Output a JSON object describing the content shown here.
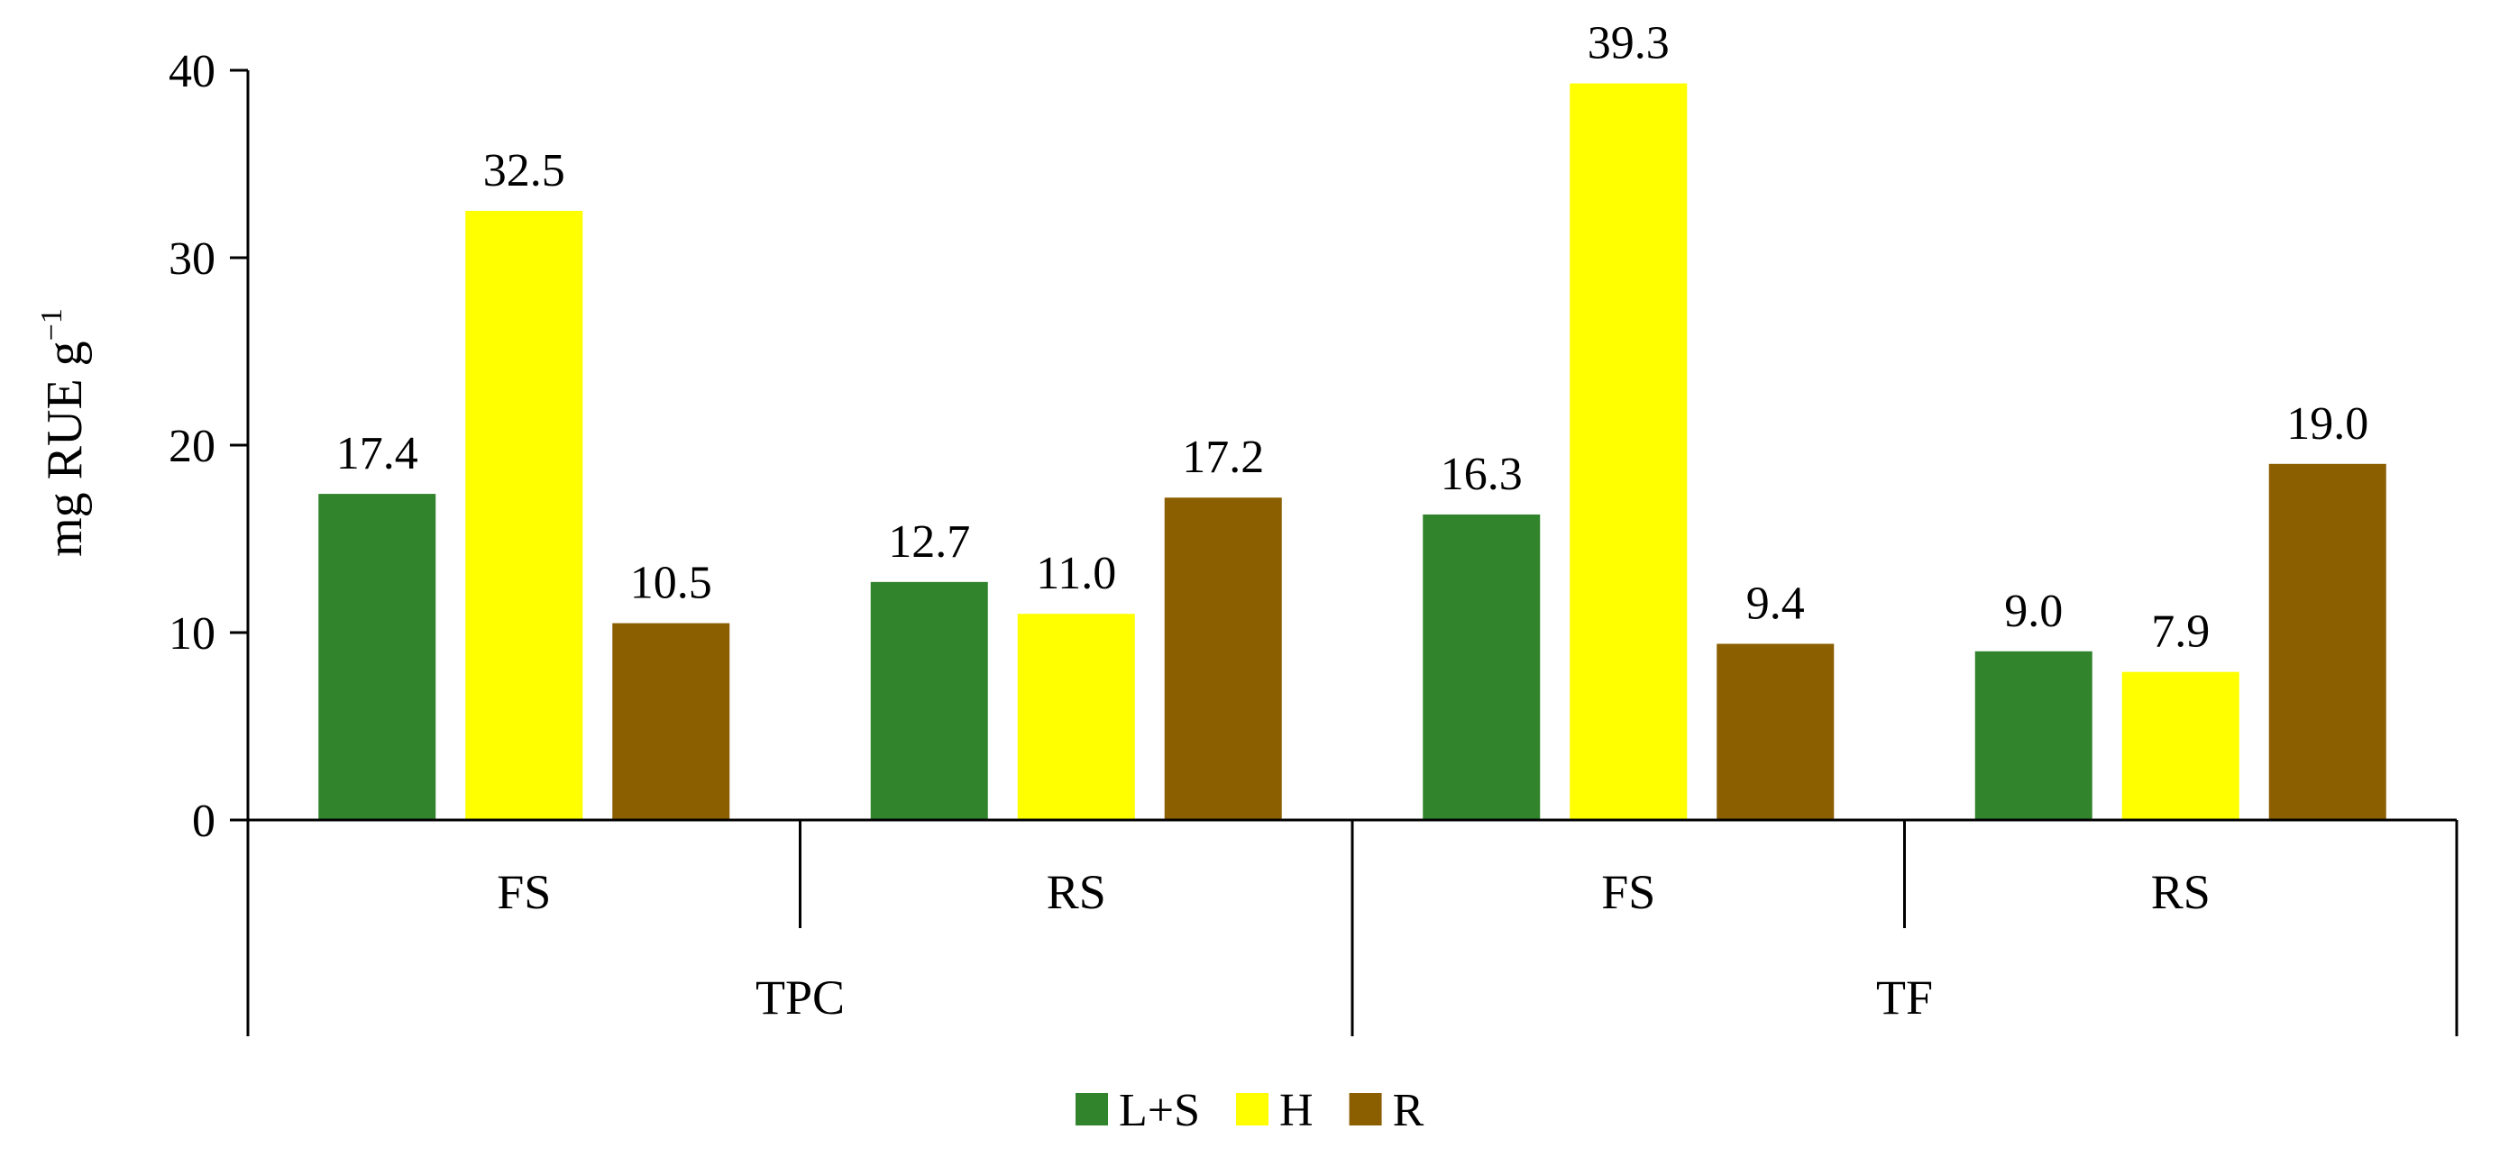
{
  "chart_data": {
    "type": "bar",
    "ylabel": "mg RUE g",
    "ylabel_superscript": "−1",
    "ylim": [
      0,
      40
    ],
    "yticks": [
      0,
      10,
      20,
      30,
      40
    ],
    "grid": false,
    "legend_position": "bottom-center",
    "groups": [
      {
        "label": "TPC",
        "subgroups": [
          "FS",
          "RS"
        ]
      },
      {
        "label": "TF",
        "subgroups": [
          "FS",
          "RS"
        ]
      }
    ],
    "categories": [
      "TPC FS",
      "TPC RS",
      "TF FS",
      "TF RS"
    ],
    "series": [
      {
        "name": "L+S",
        "color": "#31842C",
        "values": [
          17.4,
          12.7,
          16.3,
          9.0
        ]
      },
      {
        "name": "H",
        "color": "#FFFF00",
        "values": [
          32.5,
          11.0,
          39.3,
          7.9
        ]
      },
      {
        "name": "R",
        "color": "#8B5E00",
        "values": [
          10.5,
          17.2,
          9.4,
          19.0
        ]
      }
    ],
    "data_labels": [
      [
        "17.4",
        "12.7",
        "16.3",
        "9.0"
      ],
      [
        "32.5",
        "11.0",
        "39.3",
        "7.9"
      ],
      [
        "10.5",
        "17.2",
        "9.4",
        "19.0"
      ]
    ]
  }
}
